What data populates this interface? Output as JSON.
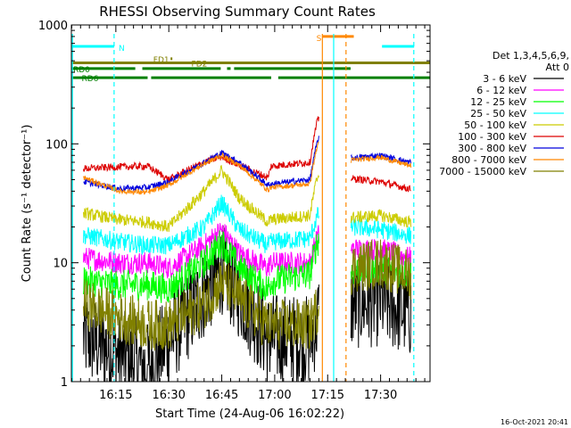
{
  "chart_data": {
    "type": "line",
    "title": "RHESSI Observing Summary Count Rates",
    "xlabel": "Start Time (24-Aug-06 16:02:22)",
    "ylabel": "Count Rate (s⁻¹ detector⁻¹)",
    "y_scale": "log",
    "ylim": [
      1,
      1000
    ],
    "xlim_minutes_of_day": [
      962.4,
      1064
    ],
    "x_ticks": [
      {
        "label": "16:15",
        "minute": 975
      },
      {
        "label": "16:30",
        "minute": 990
      },
      {
        "label": "16:45",
        "minute": 1005
      },
      {
        "label": "17:00",
        "minute": 1020
      },
      {
        "label": "17:15",
        "minute": 1035
      },
      {
        "label": "17:30",
        "minute": 1050
      }
    ],
    "y_ticks": [
      {
        "label": "1",
        "value": 1
      },
      {
        "label": "10",
        "value": 10
      },
      {
        "label": "100",
        "value": 100
      },
      {
        "label": "1000",
        "value": 1000
      }
    ],
    "timestamp": "16-Oct-2021 20:41",
    "legend": {
      "title_line1": "Det 1,3,4,5,6,9,",
      "title_line2": "Att 0",
      "placement": "right"
    },
    "series": [
      {
        "name": "3 - 6 keV",
        "color": "#000000"
      },
      {
        "name": "6 - 12 keV",
        "color": "#ff00ff"
      },
      {
        "name": "12 - 25 keV",
        "color": "#00ff00"
      },
      {
        "name": "25 - 50 keV",
        "color": "#00ffff"
      },
      {
        "name": "50 - 100 keV",
        "color": "#cccc00"
      },
      {
        "name": "100 - 300 keV",
        "color": "#dd0000"
      },
      {
        "name": "300 - 800 keV",
        "color": "#0000dd"
      },
      {
        "name": "800 - 7000 keV",
        "color": "#ff8800"
      },
      {
        "name": "7000 - 15000 keV",
        "color": "#808000"
      }
    ],
    "segments": [
      {
        "start": 965.8,
        "end": 984.0
      },
      {
        "start": 984.0,
        "end": 1018.5
      },
      {
        "start": 1018.5,
        "end": 1032.5
      },
      {
        "start": 1041.6,
        "end": 1058.6
      }
    ],
    "values_at_times": {
      "times": [
        966,
        976,
        984,
        990,
        1000,
        1005,
        1010,
        1018,
        1019,
        1030,
        1032,
        1042,
        1050,
        1058
      ],
      "3 - 6 keV": [
        2.4,
        1.7,
        1.3,
        2.2,
        5.5,
        9,
        5.5,
        2.3,
        2.3,
        2.2,
        2.4,
        4.5,
        4.8,
        3.8
      ],
      "6 - 12 keV": [
        11,
        10,
        10,
        9,
        14,
        19,
        12,
        9,
        10,
        10,
        12,
        13,
        13,
        11
      ],
      "12 - 25 keV": [
        7,
        6.5,
        6.5,
        6,
        10,
        15,
        9,
        6,
        7,
        8,
        11,
        8.5,
        9,
        8
      ],
      "25 - 50 keV": [
        17,
        15,
        14,
        14,
        20,
        32,
        19,
        14,
        15,
        16,
        18,
        20,
        19,
        17
      ],
      "50 - 100 keV": [
        26,
        23,
        22,
        20,
        40,
        60,
        35,
        22,
        23,
        25,
        30,
        24,
        25,
        22
      ],
      "100 - 300 keV": [
        62,
        64,
        65,
        50,
        70,
        78,
        66,
        52,
        65,
        70,
        90,
        51,
        48,
        42
      ],
      "300 - 800 keV": [
        48,
        42,
        43,
        48,
        70,
        84,
        70,
        45,
        46,
        50,
        60,
        76,
        80,
        70
      ],
      "800 - 7000 keV": [
        52,
        40,
        39,
        45,
        68,
        80,
        66,
        41,
        43,
        46,
        55,
        73,
        77,
        66
      ],
      "7000 - 15000 keV": [
        4.5,
        3.5,
        3,
        3,
        4.5,
        7,
        5,
        3,
        3,
        3,
        3,
        9,
        10,
        8
      ]
    },
    "flags": [
      {
        "label": "N",
        "color": "#00ffff",
        "value": 660,
        "start": 962.4,
        "end": 974.5
      },
      {
        "label": "N",
        "color": "#00ffff",
        "value": 660,
        "start": 1050.4,
        "end": 1059.5
      },
      {
        "label": "S",
        "color": "#ff8800",
        "value": 800,
        "start": 1033.5,
        "end": 1042.4
      },
      {
        "label": "FD1",
        "color": "#808000",
        "value": 520,
        "start": 990.5,
        "end": 991
      },
      {
        "label": "FD2",
        "color": "#808000",
        "value": 480,
        "start": 962.4,
        "end": 1064
      },
      {
        "label": "RD0",
        "color": "#008000",
        "value": 430,
        "start": 962.4,
        "end": 1041.5
      },
      {
        "label": "RD6",
        "color": "#008000",
        "value": 360,
        "start": 962.4,
        "end": 1064
      }
    ],
    "vertical_markers": [
      {
        "minute": 962.7,
        "color": "#00ffff",
        "dashed": false
      },
      {
        "minute": 974.5,
        "color": "#00ffff",
        "dashed": true
      },
      {
        "minute": 1033.5,
        "color": "#ff8800",
        "dashed": false
      },
      {
        "minute": 1036.7,
        "color": "#00ffff",
        "dashed": false
      },
      {
        "minute": 1040.2,
        "color": "#ff8800",
        "dashed": true
      },
      {
        "minute": 1059.4,
        "color": "#00ffff",
        "dashed": true
      }
    ]
  }
}
